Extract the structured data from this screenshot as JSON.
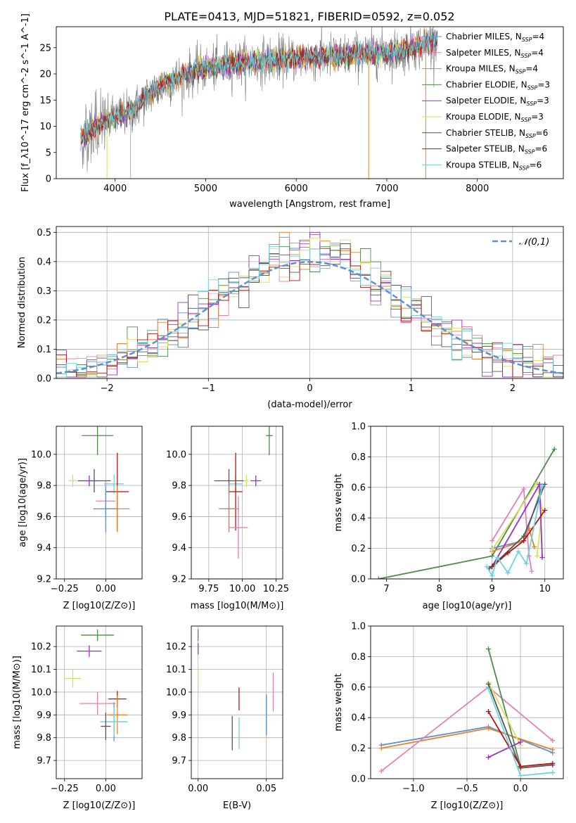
{
  "figure_title": "PLATE=0413, MJD=51821, FIBERID=0592, z=0.052",
  "colors": {
    "chabrier_miles": "#5b8fd6",
    "salpeter_miles": "#e57fb8",
    "kroupa_miles": "#e8832a",
    "chabrier_elodie": "#4f8a4f",
    "salpeter_elodie": "#9b30c8",
    "kroupa_elodie": "#d6e05a",
    "chabrier_stelib": "#555555",
    "salpeter_stelib": "#b01515",
    "kroupa_stelib": "#6fd3dd",
    "normal_curve": "#5b8fd6"
  },
  "chart_data": [
    {
      "type": "line",
      "panel": "spectrum",
      "xlabel": "wavelength [Angstrom, rest frame]",
      "ylabel": "Flux [f_λ10^-17 erg cm^-2 s^-1 A^-1]",
      "xlim": [
        3350,
        8950
      ],
      "ylim": [
        0,
        29
      ],
      "xticks": [
        4000,
        5000,
        6000,
        7000,
        8000
      ],
      "yticks": [
        0,
        5,
        10,
        15,
        20,
        25
      ],
      "grid": false,
      "legend_position": "right",
      "x_range_shown": [
        3620,
        7560
      ],
      "series": [
        {
          "name": "Chabrier MILES, N_SSP=4"
        },
        {
          "name": "Salpeter MILES, N_SSP=4"
        },
        {
          "name": "Kroupa MILES, N_SSP=4"
        },
        {
          "name": "Chabrier ELODIE, N_SSP=3"
        },
        {
          "name": "Salpeter ELODIE, N_SSP=3"
        },
        {
          "name": "Kroupa ELODIE, N_SSP=3"
        },
        {
          "name": "Chabrier STELIB, N_SSP=6"
        },
        {
          "name": "Salpeter STELIB, N_SSP=6"
        },
        {
          "name": "Kroupa STELIB, N_SSP=6"
        }
      ],
      "continuum": {
        "x": [
          3620,
          3800,
          4000,
          4200,
          4400,
          4600,
          4800,
          5000,
          5300,
          5600,
          6000,
          6400,
          6800,
          7200,
          7560
        ],
        "y": [
          7.5,
          10,
          11.5,
          13,
          16.5,
          18.5,
          20,
          21,
          22,
          22.5,
          23,
          23.3,
          23.8,
          24.5,
          26.5
        ]
      }
    },
    {
      "type": "line",
      "panel": "residual_histogram",
      "xlabel": "(data-model)/error",
      "ylabel": "Normed distribution",
      "xlim": [
        -2.5,
        2.5
      ],
      "ylim": [
        0,
        0.52
      ],
      "xticks": [
        -2,
        -1,
        0,
        1,
        2
      ],
      "yticks": [
        0.0,
        0.1,
        0.2,
        0.3,
        0.4,
        0.5
      ],
      "grid": true,
      "legend": "𝒩(0,1)",
      "legend_position": "top-right",
      "bin_width": 0.1,
      "bin_start": -2.5
    },
    {
      "type": "scatter",
      "panel": "age_vs_Z",
      "xlabel": "Z [log10(Z/Z⊙)]",
      "ylabel": "age [log10(age/yr)]",
      "xlim": [
        -0.3,
        0.22
      ],
      "ylim": [
        9.2,
        10.18
      ],
      "xticks": [
        -0.25,
        0.0
      ],
      "xtick_labels": [
        "−0.25",
        "0.00"
      ],
      "yticks": [
        9.2,
        9.4,
        9.6,
        9.8,
        10.0
      ],
      "grid": true,
      "points": [
        {
          "series": "Chabrier ELODIE",
          "x": -0.05,
          "y": 10.12,
          "xerr": 0.19,
          "yerr": 0.25
        },
        {
          "series": "Chabrier STELIB",
          "x": -0.07,
          "y": 9.83,
          "xerr": 0.2,
          "yerr": 0.15
        },
        {
          "series": "Kroupa ELODIE",
          "x": -0.2,
          "y": 9.83,
          "xerr": 0.05,
          "yerr": 0.08
        },
        {
          "series": "Salpeter ELODIE",
          "x": -0.1,
          "y": 9.83,
          "xerr": 0.12,
          "yerr": 0.07
        },
        {
          "series": "Kroupa STELIB",
          "x": 0.05,
          "y": 9.81,
          "xerr": 0.12,
          "yerr": 0.12
        },
        {
          "series": "Salpeter MILES",
          "x": 0.0,
          "y": 9.7,
          "xerr": 0.12,
          "yerr": 0.25
        },
        {
          "series": "Salpeter STELIB",
          "x": 0.07,
          "y": 9.76,
          "xerr": 0.14,
          "yerr": 0.5
        },
        {
          "series": "Kroupa MILES",
          "x": 0.07,
          "y": 9.65,
          "xerr": 0.15,
          "yerr": 0.3
        },
        {
          "series": "Chabrier MILES",
          "x": 0.0,
          "y": 9.65,
          "xerr": 0.15,
          "yerr": 0.3
        }
      ]
    },
    {
      "type": "scatter",
      "panel": "age_vs_mass",
      "xlabel": "mass [log10(M/M⊙)]",
      "ylabel": "",
      "xlim": [
        9.62,
        10.3
      ],
      "ylim": [
        9.2,
        10.18
      ],
      "xticks": [
        9.75,
        10.0,
        10.25
      ],
      "xtick_labels": [
        "9.75",
        "10.00",
        "10.25"
      ],
      "yticks": [
        9.2,
        9.4,
        9.6,
        9.8,
        10.0
      ],
      "grid": true,
      "points": [
        {
          "series": "Chabrier ELODIE",
          "x": 10.2,
          "y": 10.12,
          "xerr": 0.05,
          "yerr": 0.25
        },
        {
          "series": "Chabrier STELIB",
          "x": 9.9,
          "y": 9.83,
          "xerr": 0.22,
          "yerr": 0.15
        },
        {
          "series": "Salpeter ELODIE",
          "x": 10.1,
          "y": 9.83,
          "xerr": 0.08,
          "yerr": 0.07
        },
        {
          "series": "Kroupa ELODIE",
          "x": 10.03,
          "y": 9.83,
          "xerr": 0.03,
          "yerr": 0.08
        },
        {
          "series": "Kroupa STELIB",
          "x": 9.95,
          "y": 9.81,
          "xerr": 0.1,
          "yerr": 0.12
        },
        {
          "series": "Salpeter STELIB",
          "x": 9.95,
          "y": 9.76,
          "xerr": 0.1,
          "yerr": 0.5
        },
        {
          "series": "Chabrier MILES",
          "x": 9.9,
          "y": 9.65,
          "xerr": 0.12,
          "yerr": 0.3
        },
        {
          "series": "Kroupa MILES",
          "x": 9.9,
          "y": 9.65,
          "xerr": 0.15,
          "yerr": 0.3
        },
        {
          "series": "Salpeter MILES",
          "x": 9.97,
          "y": 9.53,
          "xerr": 0.14,
          "yerr": 0.4
        }
      ]
    },
    {
      "type": "line",
      "panel": "weight_vs_age",
      "xlabel": "age [log10(age/yr)]",
      "ylabel": "mass weight",
      "xlim": [
        6.7,
        10.35
      ],
      "ylim": [
        0,
        1.0
      ],
      "xticks": [
        7,
        8,
        9,
        10
      ],
      "yticks": [
        0.0,
        0.2,
        0.4,
        0.6,
        0.8,
        1.0
      ],
      "grid": true,
      "series": [
        {
          "name": "Chabrier ELODIE",
          "x": [
            6.85,
            9.0,
            10.18
          ],
          "y": [
            0.0,
            0.15,
            0.85
          ]
        },
        {
          "name": "Chabrier MILES",
          "x": [
            9.0,
            9.6,
            9.95
          ],
          "y": [
            0.2,
            0.25,
            0.61
          ]
        },
        {
          "name": "Kroupa MILES",
          "x": [
            9.0,
            9.6,
            9.7,
            9.8
          ],
          "y": [
            0.18,
            0.25,
            0.33,
            0.21
          ]
        },
        {
          "name": "Salpeter MILES",
          "x": [
            9.0,
            9.6,
            9.7,
            9.75
          ],
          "y": [
            0.25,
            0.59,
            0.15,
            0.05
          ]
        },
        {
          "name": "Kroupa ELODIE",
          "x": [
            9.0,
            9.85,
            9.95,
            9.85
          ],
          "y": [
            0.19,
            0.63,
            0.45,
            0.15
          ]
        },
        {
          "name": "Salpeter ELODIE",
          "x": [
            9.0,
            9.9,
            9.95
          ],
          "y": [
            0.08,
            0.62,
            0.14
          ]
        },
        {
          "name": "Chabrier STELIB",
          "x": [
            8.95,
            9.05,
            9.6,
            10.0
          ],
          "y": [
            0.07,
            0.1,
            0.28,
            0.62
          ]
        },
        {
          "name": "Salpeter STELIB",
          "x": [
            9.0,
            9.3,
            9.6,
            10.0
          ],
          "y": [
            0.08,
            0.17,
            0.25,
            0.45
          ]
        },
        {
          "name": "Kroupa STELIB",
          "x": [
            8.9,
            9.0,
            9.1,
            9.3,
            9.5,
            9.65,
            9.95
          ],
          "y": [
            0.08,
            0.02,
            0.14,
            0.04,
            0.18,
            0.1,
            0.61
          ]
        }
      ]
    },
    {
      "type": "scatter",
      "panel": "mass_vs_Z",
      "xlabel": "Z [log10(Z/Z⊙)]",
      "ylabel": "mass [log10(M/M⊙)]",
      "xlim": [
        -0.3,
        0.22
      ],
      "ylim": [
        9.62,
        10.29
      ],
      "xticks": [
        -0.25,
        0.0
      ],
      "xtick_labels": [
        "−0.25",
        "0.00"
      ],
      "yticks": [
        9.7,
        9.8,
        9.9,
        10.0,
        10.1,
        10.2
      ],
      "grid": true,
      "points": [
        {
          "series": "Chabrier ELODIE",
          "x": -0.05,
          "y": 10.25,
          "xerr": 0.2,
          "yerr": 0.05
        },
        {
          "series": "Salpeter ELODIE",
          "x": -0.1,
          "y": 10.18,
          "xerr": 0.15,
          "yerr": 0.05
        },
        {
          "series": "Kroupa ELODIE",
          "x": -0.2,
          "y": 10.06,
          "xerr": 0.1,
          "yerr": 0.08
        },
        {
          "series": "Salpeter STELIB",
          "x": 0.07,
          "y": 9.97,
          "xerr": 0.11,
          "yerr": 0.07
        },
        {
          "series": "Salpeter MILES",
          "x": -0.05,
          "y": 9.95,
          "xerr": 0.22,
          "yerr": 0.1
        },
        {
          "series": "Kroupa MILES",
          "x": 0.07,
          "y": 9.9,
          "xerr": 0.12,
          "yerr": 0.17
        },
        {
          "series": "Chabrier MILES",
          "x": 0.05,
          "y": 9.87,
          "xerr": 0.15,
          "yerr": 0.17
        },
        {
          "series": "Kroupa STELIB",
          "x": 0.05,
          "y": 9.87,
          "xerr": 0.17,
          "yerr": 0.13
        },
        {
          "series": "Chabrier STELIB",
          "x": 0.0,
          "y": 9.85,
          "xerr": 0.06,
          "yerr": 0.12
        }
      ]
    },
    {
      "type": "scatter",
      "panel": "mass_vs_ebv",
      "xlabel": "E(B-V)",
      "ylabel": "",
      "xlim": [
        -0.005,
        0.062
      ],
      "ylim": [
        9.62,
        10.29
      ],
      "xticks": [
        0.0,
        0.05
      ],
      "xtick_labels": [
        "0.00",
        "0.05"
      ],
      "yticks": [
        9.7,
        9.8,
        9.9,
        10.0,
        10.1,
        10.2
      ],
      "grid": true,
      "points": [
        {
          "series": "Chabrier ELODIE",
          "x": 0.0,
          "y": 10.25,
          "yerr": 0.05
        },
        {
          "series": "Salpeter ELODIE",
          "x": 0.0,
          "y": 10.19,
          "yerr": 0.05
        },
        {
          "series": "Kroupa ELODIE",
          "x": 0.0,
          "y": 10.06,
          "yerr": 0.08
        },
        {
          "series": "Salpeter STELIB",
          "x": 0.03,
          "y": 9.97,
          "yerr": 0.1
        },
        {
          "series": "Kroupa STELIB",
          "x": 0.03,
          "y": 9.82,
          "yerr": 0.14
        },
        {
          "series": "Chabrier STELIB",
          "x": 0.025,
          "y": 9.82,
          "yerr": 0.15
        },
        {
          "series": "Kroupa MILES",
          "x": 0.05,
          "y": 9.9,
          "yerr": 0.17
        },
        {
          "series": "Chabrier MILES",
          "x": 0.05,
          "y": 9.9,
          "yerr": 0.18
        },
        {
          "series": "Salpeter MILES",
          "x": 0.055,
          "y": 10.0,
          "yerr": 0.17
        }
      ]
    },
    {
      "type": "line",
      "panel": "weight_vs_Z",
      "xlabel": "Z [log10(Z/Z⊙)]",
      "ylabel": "mass weight",
      "xlim": [
        -1.4,
        0.4
      ],
      "ylim": [
        0,
        1.0
      ],
      "xticks": [
        -1.0,
        -0.5,
        0.0
      ],
      "xtick_labels": [
        "−1.0",
        "−0.5",
        "0.0"
      ],
      "yticks": [
        0.0,
        0.2,
        0.4,
        0.6,
        0.8,
        1.0
      ],
      "grid": true,
      "series": [
        {
          "name": "Chabrier MILES",
          "x": [
            -1.3,
            -0.3,
            0.3
          ],
          "y": [
            0.22,
            0.34,
            0.17
          ]
        },
        {
          "name": "Kroupa MILES",
          "x": [
            -1.3,
            -0.3,
            0.3
          ],
          "y": [
            0.2,
            0.33,
            0.19
          ]
        },
        {
          "name": "Salpeter MILES",
          "x": [
            -1.3,
            -0.3,
            0.3
          ],
          "y": [
            0.05,
            0.6,
            0.25
          ]
        },
        {
          "name": "Chabrier ELODIE",
          "x": [
            -0.3,
            0.0
          ],
          "y": [
            0.85,
            0.08
          ]
        },
        {
          "name": "Kroupa ELODIE",
          "x": [
            -0.3,
            0.0
          ],
          "y": [
            0.63,
            0.22
          ]
        },
        {
          "name": "Salpeter ELODIE",
          "x": [
            -0.3,
            0.0
          ],
          "y": [
            0.14,
            0.24
          ]
        },
        {
          "name": "Chabrier STELIB",
          "x": [
            -0.3,
            0.0,
            0.3
          ],
          "y": [
            0.62,
            0.07,
            0.09
          ]
        },
        {
          "name": "Salpeter STELIB",
          "x": [
            -0.3,
            0.0,
            0.3
          ],
          "y": [
            0.44,
            0.08,
            0.1
          ]
        },
        {
          "name": "Kroupa STELIB",
          "x": [
            -0.3,
            0.0,
            0.3
          ],
          "y": [
            0.59,
            0.02,
            0.04
          ]
        }
      ]
    }
  ]
}
